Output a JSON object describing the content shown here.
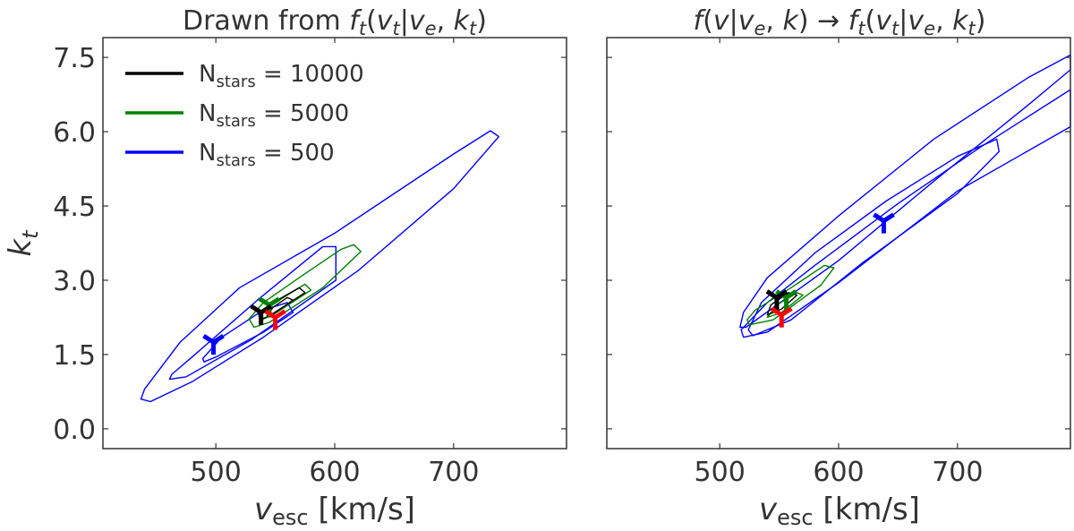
{
  "chart_data": [
    {
      "type": "contour",
      "title": "Drawn from f_t(v_t|v_e, k_t)",
      "title_parts": {
        "prefix": "Drawn from ",
        "math": "f",
        "sub1": "t",
        "open": "(",
        "v": "v",
        "sub2": "t",
        "bar": "|",
        "v2": "v",
        "sub3": "e",
        "comma": ", ",
        "k": "k",
        "sub4": "t",
        "close": ")"
      },
      "xlabel": {
        "main": "v",
        "sub": "esc",
        "unit": " [km/s]"
      },
      "ylabel": {
        "main": "k",
        "sub": "t"
      },
      "xlim": [
        405,
        795
      ],
      "ylim": [
        -0.4,
        7.9
      ],
      "xticks": [
        500,
        600,
        700
      ],
      "yticks": [
        0.0,
        1.5,
        3.0,
        4.5,
        6.0,
        7.5
      ],
      "ytick_labels": [
        "0.0",
        "1.5",
        "3.0",
        "4.5",
        "6.0",
        "7.5"
      ],
      "xtick_labels": [
        "500",
        "600",
        "700"
      ],
      "legend": {
        "position": "upper-left",
        "entries": [
          {
            "label_main": "N",
            "label_sub": "stars",
            "label_value": " = 10000",
            "color": "#000000"
          },
          {
            "label_main": "N",
            "label_sub": "stars",
            "label_value": " = 5000",
            "color": "#008000"
          },
          {
            "label_main": "N",
            "label_sub": "stars",
            "label_value": " = 500",
            "color": "#0000ff"
          }
        ]
      },
      "series": [
        {
          "name": "N_stars = 500",
          "color": "#0000ff",
          "contours": [
            [
              [
                437,
                0.6
              ],
              [
                445,
                0.55
              ],
              [
                480,
                0.95
              ],
              [
                540,
                1.85
              ],
              [
                620,
                3.2
              ],
              [
                700,
                4.85
              ],
              [
                738,
                5.9
              ],
              [
                731,
                6.02
              ],
              [
                700,
                5.55
              ],
              [
                600,
                3.95
              ],
              [
                520,
                2.85
              ],
              [
                470,
                1.75
              ],
              [
                440,
                0.8
              ]
            ],
            [
              [
                461,
                1.0
              ],
              [
                475,
                1.05
              ],
              [
                530,
                1.8
              ],
              [
                601,
                3.0
              ],
              [
                601,
                3.68
              ],
              [
                590,
                3.68
              ],
              [
                535,
                2.6
              ],
              [
                480,
                1.45
              ],
              [
                463,
                1.1
              ]
            ],
            [
              [
                490,
                1.35
              ],
              [
                500,
                1.45
              ],
              [
                540,
                1.95
              ],
              [
                565,
                2.35
              ],
              [
                560,
                2.55
              ],
              [
                540,
                2.4
              ],
              [
                505,
                1.85
              ],
              [
                489,
                1.42
              ]
            ]
          ]
        },
        {
          "name": "N_stars = 5000",
          "color": "#008000",
          "contours": [
            [
              [
                532,
                2.05
              ],
              [
                545,
                2.15
              ],
              [
                590,
                2.85
              ],
              [
                622,
                3.58
              ],
              [
                616,
                3.72
              ],
              [
                605,
                3.62
              ],
              [
                570,
                3.05
              ],
              [
                540,
                2.55
              ],
              [
                528,
                2.22
              ]
            ],
            [
              [
                538,
                2.2
              ],
              [
                548,
                2.3
              ],
              [
                580,
                2.8
              ],
              [
                575,
                2.92
              ],
              [
                560,
                2.7
              ],
              [
                540,
                2.4
              ]
            ]
          ]
        },
        {
          "name": "N_stars = 10000",
          "color": "#000000",
          "contours": [
            [
              [
                537,
                2.2
              ],
              [
                545,
                2.28
              ],
              [
                575,
                2.75
              ],
              [
                570,
                2.85
              ],
              [
                552,
                2.6
              ],
              [
                536,
                2.32
              ]
            ],
            [
              [
                543,
                2.28
              ],
              [
                550,
                2.35
              ],
              [
                565,
                2.6
              ],
              [
                560,
                2.65
              ],
              [
                548,
                2.45
              ]
            ]
          ]
        }
      ],
      "markers": [
        {
          "name": "N_stars = 500 best fit",
          "x": 498,
          "y": 1.75,
          "color": "#0000ff"
        },
        {
          "name": "N_stars = 5000 best fit",
          "x": 545,
          "y": 2.5,
          "color": "#008000"
        },
        {
          "name": "N_stars = 10000 best fit",
          "x": 538,
          "y": 2.35,
          "color": "#000000"
        },
        {
          "name": "true value",
          "x": 550,
          "y": 2.25,
          "color": "#ff0000"
        }
      ]
    },
    {
      "type": "contour",
      "title": "f(v|v_e, k) → f_t(v_t|v_e, k_t)",
      "xlabel": {
        "main": "v",
        "sub": "esc",
        "unit": " [km/s]"
      },
      "ylabel": null,
      "xlim": [
        405,
        795
      ],
      "ylim": [
        -0.4,
        7.9
      ],
      "xticks": [
        500,
        600,
        700
      ],
      "xtick_labels": [
        "500",
        "600",
        "700"
      ],
      "yticks": [
        0.0,
        1.5,
        3.0,
        4.5,
        6.0,
        7.5
      ],
      "series": [
        {
          "name": "N_stars = 500",
          "color": "#0000ff",
          "contours": [
            [
              [
                520,
                1.85
              ],
              [
                540,
                1.95
              ],
              [
                600,
                2.95
              ],
              [
                700,
                4.8
              ],
              [
                795,
                6.1
              ],
              [
                795,
                6.85
              ],
              [
                720,
                5.7
              ],
              [
                650,
                4.55
              ],
              [
                580,
                3.3
              ],
              [
                540,
                2.55
              ],
              [
                518,
                2.0
              ]
            ],
            [
              [
                528,
                1.88
              ],
              [
                560,
                2.2
              ],
              [
                620,
                3.35
              ],
              [
                700,
                4.75
              ],
              [
                735,
                5.6
              ],
              [
                733,
                5.85
              ],
              [
                700,
                5.5
              ],
              [
                640,
                4.6
              ],
              [
                580,
                3.55
              ],
              [
                535,
                2.55
              ],
              [
                524,
                2.0
              ]
            ],
            [
              [
                522,
                2.05
              ],
              [
                600,
                3.4
              ],
              [
                680,
                5.0
              ],
              [
                760,
                6.55
              ],
              [
                795,
                7.25
              ],
              [
                795,
                7.55
              ],
              [
                760,
                7.1
              ],
              [
                680,
                5.85
              ],
              [
                600,
                4.3
              ],
              [
                540,
                3.05
              ],
              [
                520,
                2.35
              ],
              [
                517,
                2.05
              ]
            ]
          ]
        },
        {
          "name": "N_stars = 5000",
          "color": "#008000",
          "contours": [
            [
              [
                525,
                2.1
              ],
              [
                545,
                2.2
              ],
              [
                585,
                2.9
              ],
              [
                596,
                3.25
              ],
              [
                588,
                3.3
              ],
              [
                560,
                2.85
              ],
              [
                530,
                2.4
              ],
              [
                523,
                2.2
              ]
            ],
            [
              [
                540,
                2.25
              ],
              [
                552,
                2.35
              ],
              [
                570,
                2.7
              ],
              [
                565,
                2.75
              ],
              [
                548,
                2.5
              ]
            ]
          ]
        },
        {
          "name": "N_stars = 10000",
          "color": "#000000",
          "contours": [
            [
              [
                540,
                2.3
              ],
              [
                552,
                2.42
              ],
              [
                565,
                2.7
              ],
              [
                558,
                2.75
              ],
              [
                543,
                2.5
              ]
            ]
          ]
        }
      ],
      "markers": [
        {
          "name": "N_stars = 500 best fit",
          "x": 638,
          "y": 4.2,
          "color": "#0000ff"
        },
        {
          "name": "N_stars = 5000 best fit",
          "x": 556,
          "y": 2.65,
          "color": "#008000"
        },
        {
          "name": "N_stars = 10000 best fit",
          "x": 548,
          "y": 2.65,
          "color": "#000000"
        },
        {
          "name": "true value",
          "x": 552,
          "y": 2.3,
          "color": "#ff0000"
        }
      ]
    }
  ]
}
